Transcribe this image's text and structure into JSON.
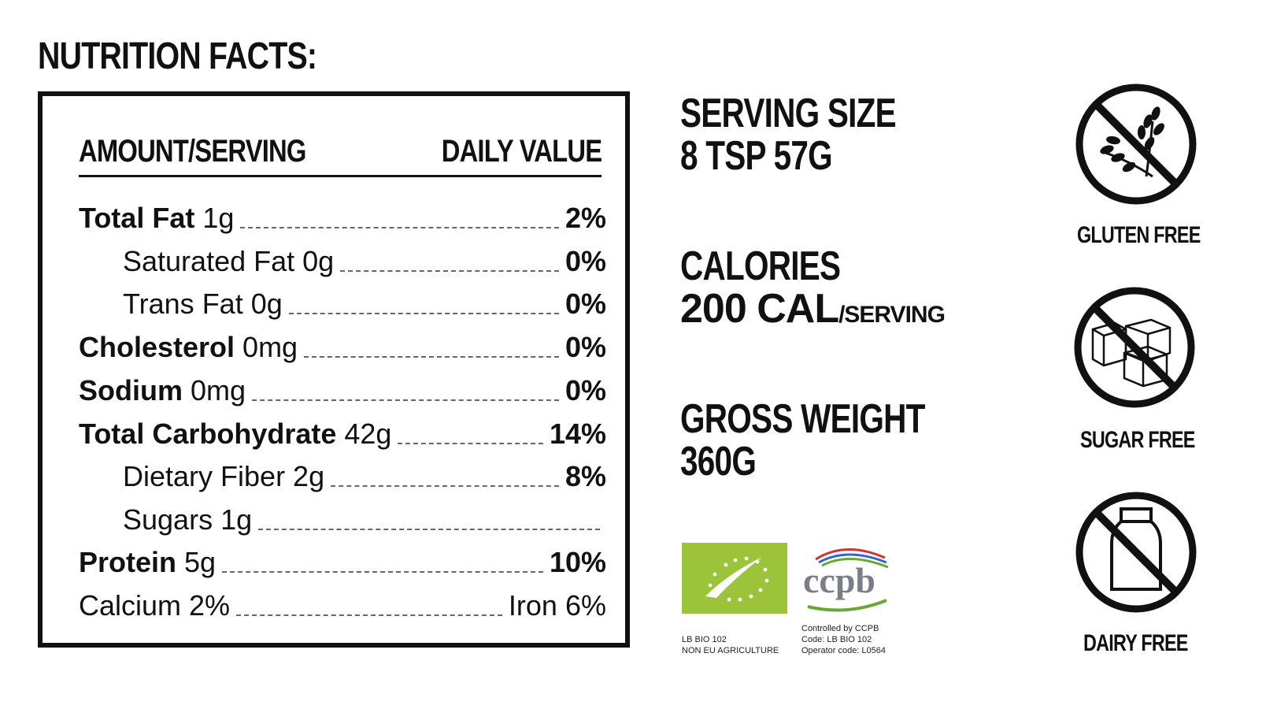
{
  "title": "NUTRITION FACTS:",
  "panel": {
    "header_left": "AMOUNT/SERVING",
    "header_right": "DAILY VALUE",
    "rows": [
      {
        "name": "Total Fat",
        "amount": "1g",
        "dv": "2%"
      },
      {
        "name": "Saturated Fat 0g",
        "dv": "0%"
      },
      {
        "name": "Trans Fat 0g",
        "dv": "0%"
      },
      {
        "name": "Cholesterol",
        "amount": "0mg",
        "dv": "0%"
      },
      {
        "name": "Sodium",
        "amount": "0mg",
        "dv": "0%"
      },
      {
        "name": "Total Carbohydrate",
        "amount": "42g",
        "dv": "14%"
      },
      {
        "name": "Dietary Fiber 2g",
        "dv": "8%"
      },
      {
        "name": "Sugars 1g",
        "dv": ""
      },
      {
        "name": "Protein",
        "amount": "5g",
        "dv": "10%"
      }
    ],
    "footer_left": "Calcium 2%",
    "footer_right": "Iron 6%"
  },
  "serving": {
    "label": "SERVING SIZE",
    "value": "8 TSP 57G"
  },
  "calories": {
    "label": "CALORIES",
    "value": "200 CAL",
    "unit": "/SERVING"
  },
  "weight": {
    "label": "GROSS WEIGHT",
    "value": "360G"
  },
  "certs": {
    "eu_line1": "LB BIO 102",
    "eu_line2": "NON EU AGRICULTURE",
    "ccpb_logo": "ccpb",
    "ccpb_line1": "Controlled by CCPB",
    "ccpb_line2": "Code: LB BIO 102",
    "ccpb_line3": "Operator code: L0564"
  },
  "badges": {
    "gluten": "GLUTEN FREE",
    "sugar": "SUGAR FREE",
    "dairy": "DAIRY FREE"
  },
  "colors": {
    "ink": "#111111",
    "eu_green": "#9bc43a",
    "ccpb_gray": "#7a7f86"
  }
}
